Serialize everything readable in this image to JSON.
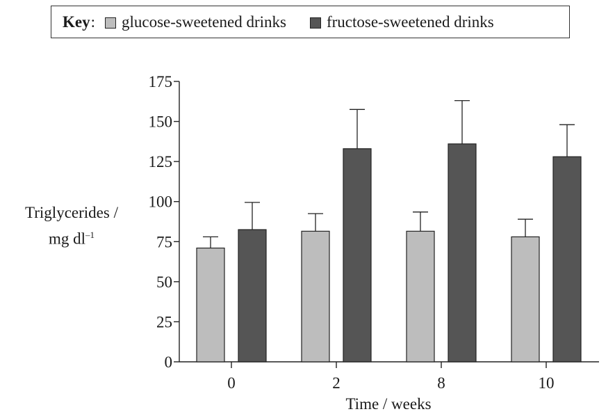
{
  "legend": {
    "key_label": "Key",
    "items": [
      {
        "label": "glucose-sweetened drinks",
        "color": "#bdbdbd"
      },
      {
        "label": "fructose-sweetened drinks",
        "color": "#555555"
      }
    ]
  },
  "chart_data": {
    "type": "bar",
    "title": "",
    "xlabel": "Time / weeks",
    "ylabel_line1": "Triglycerides /",
    "ylabel_line2": "mg dl",
    "ylabel_sup": "–1",
    "categories": [
      "0",
      "2",
      "8",
      "10"
    ],
    "ylim": [
      0,
      175
    ],
    "yticks": [
      0,
      25,
      50,
      75,
      100,
      125,
      150,
      175
    ],
    "grid": false,
    "legend_position": "top",
    "series": [
      {
        "name": "glucose-sweetened drinks",
        "color": "#bdbdbd",
        "values": [
          71,
          81.5,
          81.5,
          78
        ],
        "error": [
          7,
          11,
          12,
          11
        ]
      },
      {
        "name": "fructose-sweetened drinks",
        "color": "#555555",
        "values": [
          82.5,
          133,
          136,
          128
        ],
        "error": [
          17,
          24.5,
          27,
          20
        ]
      }
    ]
  }
}
